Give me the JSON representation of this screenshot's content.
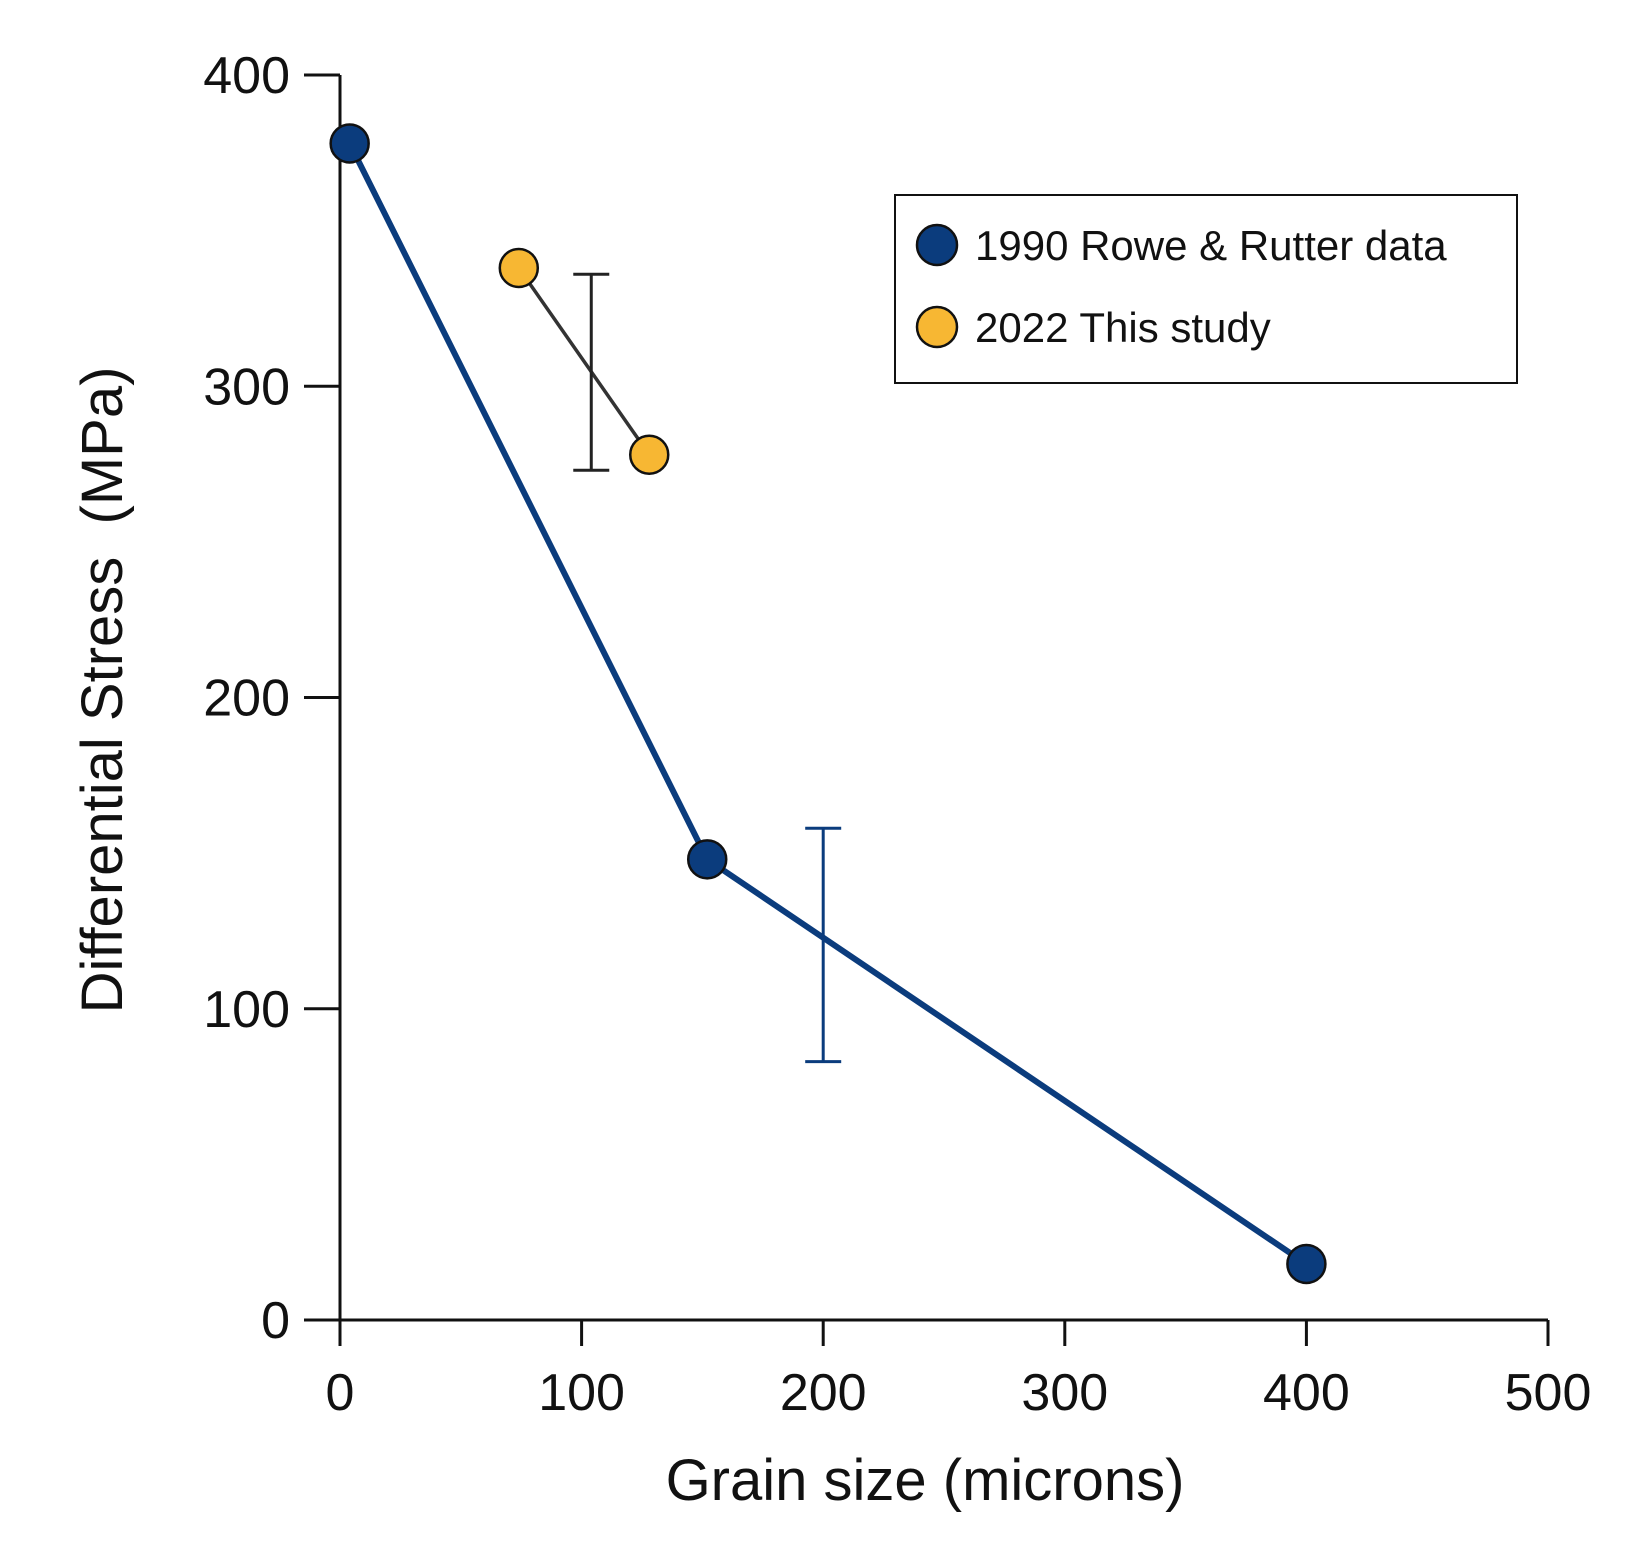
{
  "chart_data": {
    "type": "scatter",
    "title": "",
    "xlabel": "Grain size (microns)",
    "ylabel": "Differential Stress  (MPa)",
    "xlim": [
      0,
      500
    ],
    "ylim": [
      0,
      400
    ],
    "xticks": [
      0,
      100,
      200,
      300,
      400,
      500
    ],
    "yticks": [
      0,
      100,
      200,
      300,
      400
    ],
    "grid": false,
    "legend_position": "top-right",
    "series": [
      {
        "name": "1990 Rowe & Rutter data",
        "color": "#0b3c7d",
        "line_color": "#0b3c7d",
        "x": [
          4,
          152,
          400
        ],
        "y": [
          378,
          148,
          18
        ],
        "error_bar": {
          "x": 200,
          "low": 83,
          "high": 158,
          "color": "#0b3c7d"
        }
      },
      {
        "name": "2022 This study",
        "color": "#f7b733",
        "line_color": "#333333",
        "x": [
          74,
          128
        ],
        "y": [
          338,
          278
        ],
        "error_bar": {
          "x": 104,
          "low": 273,
          "high": 336,
          "color": "#222222"
        }
      }
    ]
  }
}
